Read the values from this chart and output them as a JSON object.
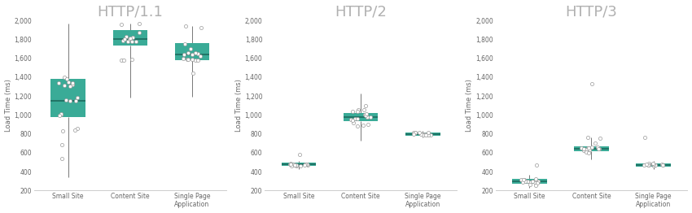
{
  "titles": [
    "HTTP/1.1",
    "HTTP/2",
    "HTTP/3"
  ],
  "categories": [
    "Small Site",
    "Content Site",
    "Single Page\nApplication"
  ],
  "ylabel": "Load Time (ms)",
  "box_color": "#3aab97",
  "median_color": "#1d6b5e",
  "whisker_color": "#777777",
  "point_color": "white",
  "point_edge_color": "#999999",
  "title_color": "#b0b0b0",
  "ylim": [
    200,
    2000
  ],
  "yticks": [
    200,
    400,
    600,
    800,
    1000,
    1200,
    1400,
    1600,
    1800,
    2000
  ],
  "figsize": [
    8.5,
    2.62
  ],
  "dpi": 100,
  "panels": [
    {
      "name": "HTTP/1.1",
      "boxes": [
        {
          "q1": 980,
          "median": 1150,
          "q3": 1380,
          "whislo": 340,
          "whishi": 1970,
          "points": [
            1160,
            1180,
            1320,
            1300,
            1000,
            1010,
            990,
            1150,
            1150,
            1340,
            1340,
            860,
            840,
            830,
            680,
            540,
            1400,
            1350,
            1380,
            1310
          ]
        },
        {
          "q1": 1730,
          "median": 1800,
          "q3": 1900,
          "whislo": 1180,
          "whishi": 1970,
          "points": [
            1820,
            1790,
            1830,
            1780,
            1800,
            1780,
            1800,
            1810,
            1780,
            1580,
            1590,
            1580,
            1960,
            1970,
            1870
          ]
        },
        {
          "q1": 1580,
          "median": 1640,
          "q3": 1760,
          "whislo": 1190,
          "whishi": 1940,
          "points": [
            1650,
            1660,
            1640,
            1660,
            1700,
            1750,
            1640,
            1600,
            1620,
            1590,
            1580,
            1590,
            1590,
            1440,
            1940,
            1920,
            1580
          ]
        }
      ]
    },
    {
      "name": "HTTP/2",
      "boxes": [
        {
          "q1": 458,
          "median": 478,
          "q3": 498,
          "whislo": 430,
          "whishi": 510,
          "points": [
            470,
            480,
            460,
            475,
            490,
            465,
            480,
            470,
            460,
            475,
            480,
            470,
            465,
            580,
            460,
            470,
            480
          ]
        },
        {
          "q1": 930,
          "median": 975,
          "q3": 1020,
          "whislo": 730,
          "whishi": 1230,
          "points": [
            980,
            990,
            960,
            950,
            980,
            1000,
            990,
            1010,
            1040,
            1050,
            920,
            900,
            890,
            880,
            940,
            960,
            1040,
            1100,
            1050
          ]
        },
        {
          "q1": 780,
          "median": 800,
          "q3": 815,
          "whislo": 760,
          "whishi": 830,
          "points": [
            790,
            800,
            810,
            800,
            790,
            800,
            810,
            800,
            790,
            800,
            815,
            810,
            800,
            790,
            810
          ]
        }
      ]
    },
    {
      "name": "HTTP/3",
      "boxes": [
        {
          "q1": 275,
          "median": 300,
          "q3": 325,
          "whislo": 230,
          "whishi": 370,
          "points": [
            290,
            300,
            310,
            295,
            285,
            300,
            310,
            300,
            290,
            295,
            310,
            300,
            470,
            320,
            310,
            280,
            260,
            250
          ]
        },
        {
          "q1": 615,
          "median": 640,
          "q3": 665,
          "whislo": 530,
          "whishi": 760,
          "points": [
            640,
            650,
            620,
            630,
            650,
            660,
            640,
            650,
            660,
            630,
            610,
            640,
            600,
            750,
            760,
            1330,
            700,
            650
          ]
        },
        {
          "q1": 455,
          "median": 470,
          "q3": 490,
          "whislo": 430,
          "whishi": 510,
          "points": [
            465,
            470,
            480,
            460,
            475,
            490,
            470,
            465,
            480,
            760,
            470,
            480,
            465,
            475,
            490,
            470
          ]
        }
      ]
    }
  ]
}
